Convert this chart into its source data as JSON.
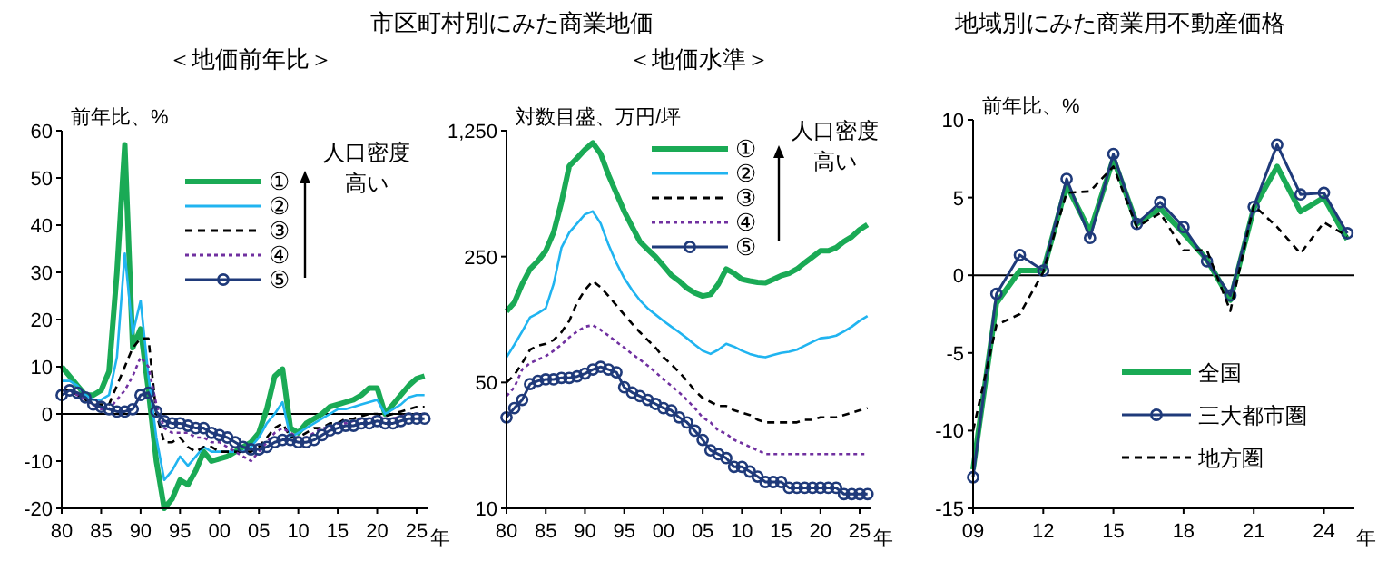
{
  "chart_data": [
    {
      "type": "line",
      "title": "市区町村別にみた商業地価",
      "subtitle": "＜地価前年比＞",
      "ylabel": "前年比、%",
      "xlabel": "年",
      "annotations": [
        "人口密度",
        "高い"
      ],
      "legend": "top right",
      "x": [
        1980,
        1981,
        1982,
        1983,
        1984,
        1985,
        1986,
        1987,
        1988,
        1989,
        1990,
        1991,
        1992,
        1993,
        1994,
        1995,
        1996,
        1997,
        1998,
        1999,
        2000,
        2001,
        2002,
        2003,
        2004,
        2005,
        2006,
        2007,
        2008,
        2009,
        2010,
        2011,
        2012,
        2013,
        2014,
        2015,
        2016,
        2017,
        2018,
        2019,
        2020,
        2021,
        2022,
        2023,
        2024,
        2025,
        2026
      ],
      "xlim": [
        1980,
        2026.5
      ],
      "xticks": [
        {
          "value": 1980,
          "label": "80"
        },
        {
          "value": 1985,
          "label": "85"
        },
        {
          "value": 1990,
          "label": "90"
        },
        {
          "value": 1995,
          "label": "95"
        },
        {
          "value": 2000,
          "label": "00"
        },
        {
          "value": 2005,
          "label": "05"
        },
        {
          "value": 2010,
          "label": "10"
        },
        {
          "value": 2015,
          "label": "15"
        },
        {
          "value": 2020,
          "label": "20"
        },
        {
          "value": 2025,
          "label": "25"
        }
      ],
      "ylim": [
        -20,
        60
      ],
      "yticks": [
        -20,
        -10,
        0,
        10,
        20,
        30,
        40,
        50,
        60
      ],
      "ref_lines": [
        {
          "axis": "y",
          "value": 0,
          "color": "#000000"
        }
      ],
      "series": [
        {
          "name": "①",
          "color": "#1aaa55",
          "values": [
            10,
            8,
            6,
            4,
            4,
            5,
            9,
            30,
            57,
            14,
            18,
            5,
            -10,
            -20,
            -18,
            -14,
            -15,
            -12,
            -8,
            -10,
            -9.5,
            -9,
            -8,
            -7,
            -6,
            -4,
            1,
            8,
            9.5,
            -3,
            -4,
            -2,
            -1,
            0,
            1.5,
            2,
            2.5,
            3,
            4,
            5.5,
            5.5,
            0,
            2,
            4,
            6,
            7.5,
            8
          ]
        },
        {
          "name": "②",
          "color": "#20b4f0",
          "values": [
            7,
            7,
            6,
            4,
            3,
            3,
            4,
            12,
            34,
            17,
            24,
            8,
            -5,
            -14,
            -12,
            -9,
            -11,
            -9,
            -7,
            -8,
            -8,
            -8,
            -8,
            -8,
            -7,
            -5,
            -2,
            0,
            2.5,
            -5,
            -4,
            -3,
            -2,
            -1,
            0,
            1,
            1,
            1.5,
            2,
            2.5,
            3,
            0,
            1,
            2,
            3.5,
            4,
            4
          ]
        },
        {
          "name": "③",
          "color": "#000000",
          "line_style": "dashed",
          "values": [
            5,
            5,
            4,
            3,
            2,
            2,
            2,
            6,
            10,
            14,
            16,
            16,
            0,
            -6,
            -6,
            -5,
            -7,
            -8,
            -7,
            -7,
            -8,
            -8,
            -8,
            -8,
            -8,
            -7,
            -5,
            -3,
            -2,
            -5,
            -5,
            -4,
            -3,
            -3,
            -2,
            -2,
            -1,
            -1,
            -0.5,
            0,
            0,
            -0.5,
            0,
            0.5,
            1,
            1.5,
            1.5
          ]
        },
        {
          "name": "④",
          "color": "#7030a0",
          "line_style": "dotted",
          "values": [
            5,
            5,
            4,
            3,
            2,
            1,
            1,
            3,
            5,
            8,
            12,
            10,
            2,
            -3,
            -4,
            -4,
            -4,
            -5,
            -5,
            -6,
            -6,
            -7,
            -8,
            -9,
            -10,
            -8,
            -6,
            -4,
            -3,
            -4,
            -5,
            -5,
            -4,
            -3,
            -3,
            -2,
            -2,
            -1.5,
            -1,
            -1,
            -0.5,
            -1,
            -1,
            -0.5,
            0,
            0,
            0
          ]
        },
        {
          "name": "⑤",
          "color": "#1f3a7a",
          "marker": "circle",
          "values": [
            4,
            5,
            4.5,
            3.5,
            2,
            1.5,
            1,
            0.5,
            0.5,
            1,
            4,
            4.5,
            0.5,
            -1.5,
            -2,
            -2,
            -2.5,
            -3,
            -3,
            -4,
            -4.5,
            -5,
            -6,
            -7,
            -7.5,
            -7.5,
            -7,
            -6,
            -5.5,
            -5.5,
            -6,
            -6,
            -5.5,
            -4.5,
            -3.5,
            -3,
            -2.5,
            -2.5,
            -2,
            -2,
            -1.5,
            -2,
            -2,
            -1.5,
            -1,
            -1,
            -1
          ]
        }
      ]
    },
    {
      "type": "line",
      "subtitle": "＜地価水準＞",
      "ylabel": "対数目盛、万円/坪",
      "xlabel": "年",
      "annotations": [
        "人口密度",
        "高い"
      ],
      "legend": "top right",
      "log": true,
      "x": [
        1980,
        1981,
        1982,
        1983,
        1984,
        1985,
        1986,
        1987,
        1988,
        1989,
        1990,
        1991,
        1992,
        1993,
        1994,
        1995,
        1996,
        1997,
        1998,
        1999,
        2000,
        2001,
        2002,
        2003,
        2004,
        2005,
        2006,
        2007,
        2008,
        2009,
        2010,
        2011,
        2012,
        2013,
        2014,
        2015,
        2016,
        2017,
        2018,
        2019,
        2020,
        2021,
        2022,
        2023,
        2024,
        2025,
        2026
      ],
      "xlim": [
        1980,
        2026.5
      ],
      "xticks": [
        {
          "value": 1980,
          "label": "80"
        },
        {
          "value": 1985,
          "label": "85"
        },
        {
          "value": 1990,
          "label": "90"
        },
        {
          "value": 1995,
          "label": "95"
        },
        {
          "value": 2000,
          "label": "00"
        },
        {
          "value": 2005,
          "label": "05"
        },
        {
          "value": 2010,
          "label": "10"
        },
        {
          "value": 2015,
          "label": "15"
        },
        {
          "value": 2020,
          "label": "20"
        },
        {
          "value": 2025,
          "label": "25"
        }
      ],
      "ylim": [
        10,
        1250
      ],
      "yticks": [
        10,
        50,
        250,
        {
          "value": 1250,
          "label": "1,250"
        }
      ],
      "series": [
        {
          "name": "①",
          "color": "#1aaa55",
          "values": [
            124,
            139,
            176,
            213,
            236,
            269,
            340,
            500,
            797,
            881,
            982,
            1070,
            930,
            709,
            562,
            446,
            367,
            303,
            274,
            249,
            222,
            197,
            183,
            167,
            157,
            151,
            154,
            176,
            213,
            202,
            187,
            183,
            180,
            179,
            187,
            196,
            202,
            213,
            231,
            249,
            269,
            269,
            280,
            303,
            322,
            353,
            376
          ]
        },
        {
          "name": "②",
          "color": "#20b4f0",
          "values": [
            69,
            81,
            96,
            115,
            121,
            129,
            176,
            280,
            340,
            382,
            429,
            446,
            382,
            291,
            231,
            190,
            163,
            143,
            129,
            119,
            110,
            102,
            95,
            88,
            81,
            75,
            72,
            76,
            82,
            79,
            75,
            72,
            70,
            69,
            71,
            73,
            74,
            76,
            80,
            84,
            88,
            89,
            91,
            96,
            102,
            110,
            117
          ]
        },
        {
          "name": "③",
          "color": "#000000",
          "line_style": "dashed",
          "values": [
            50,
            55,
            64,
            76,
            80,
            82,
            86,
            95,
            110,
            139,
            163,
            183,
            169,
            151,
            134,
            119,
            106,
            95,
            86,
            78,
            69,
            63,
            57,
            51,
            45,
            41,
            39,
            37,
            37,
            35,
            34,
            33,
            31,
            30,
            30,
            30,
            30,
            30,
            31,
            31,
            32,
            32,
            32,
            33,
            34,
            35,
            36
          ]
        },
        {
          "name": "④",
          "color": "#7030a0",
          "line_style": "dotted",
          "values": [
            42,
            47,
            59,
            64,
            67,
            70,
            75,
            81,
            89,
            96,
            102,
            104,
            98,
            91,
            84,
            78,
            72,
            67,
            62,
            57,
            52,
            48,
            44,
            40,
            36,
            32,
            30,
            27,
            26,
            24,
            23,
            22,
            21,
            20,
            20,
            20,
            20,
            20,
            20,
            20,
            20,
            20,
            20,
            20,
            20,
            20,
            20
          ]
        },
        {
          "name": "⑤",
          "color": "#1f3a7a",
          "marker": "circle",
          "values": [
            32,
            36,
            40,
            49,
            51,
            52,
            52,
            53,
            53,
            54,
            56,
            59,
            61,
            59,
            57,
            47,
            44,
            42,
            40,
            38,
            36,
            35,
            32,
            30,
            27,
            24,
            21,
            20,
            19,
            17,
            17,
            16,
            15,
            14,
            14,
            14,
            13,
            13,
            13,
            13,
            13,
            13,
            13,
            12,
            12,
            12,
            12
          ]
        }
      ]
    },
    {
      "type": "line",
      "title": "地域別にみた商業用不動産価格",
      "ylabel": "前年比、%",
      "xlabel": "年",
      "legend": "bottom right",
      "x": [
        2009,
        2010,
        2011,
        2012,
        2013,
        2014,
        2015,
        2016,
        2017,
        2018,
        2019,
        2020,
        2021,
        2022,
        2023,
        2024,
        2025
      ],
      "xlim": [
        2009,
        2025.3
      ],
      "xticks": [
        {
          "value": 2009,
          "label": "09"
        },
        {
          "value": 2012,
          "label": "12"
        },
        {
          "value": 2015,
          "label": "15"
        },
        {
          "value": 2018,
          "label": "18"
        },
        {
          "value": 2021,
          "label": "21"
        },
        {
          "value": 2024,
          "label": "24"
        }
      ],
      "ylim": [
        -15,
        10
      ],
      "yticks": [
        -15,
        -10,
        -5,
        0,
        5,
        10
      ],
      "ref_lines": [
        {
          "axis": "y",
          "value": 0,
          "color": "#000000"
        }
      ],
      "series": [
        {
          "name": "全国",
          "color": "#1aaa55",
          "values": [
            -12.5,
            -1.8,
            0.3,
            0.3,
            5.8,
            2.8,
            7.5,
            3.3,
            4.3,
            2.7,
            1.0,
            -1.6,
            4.3,
            7.0,
            4.1,
            5.0,
            2.3
          ]
        },
        {
          "name": "三大都市圏",
          "color": "#1f3a7a",
          "marker": "circle",
          "values": [
            -13,
            -1.2,
            1.3,
            0.3,
            6.2,
            2.4,
            7.8,
            3.3,
            4.7,
            3.1,
            0.9,
            -1.3,
            4.4,
            8.4,
            5.2,
            5.3,
            2.7
          ]
        },
        {
          "name": "地方圏",
          "color": "#000000",
          "line_style": "dashed",
          "values": [
            -10,
            -3.2,
            -2.5,
            0.2,
            5.3,
            5.4,
            7.0,
            3.1,
            4.0,
            1.6,
            1.6,
            -2.3,
            4.5,
            3.1,
            1.4,
            3.4,
            2.5
          ]
        }
      ]
    }
  ]
}
